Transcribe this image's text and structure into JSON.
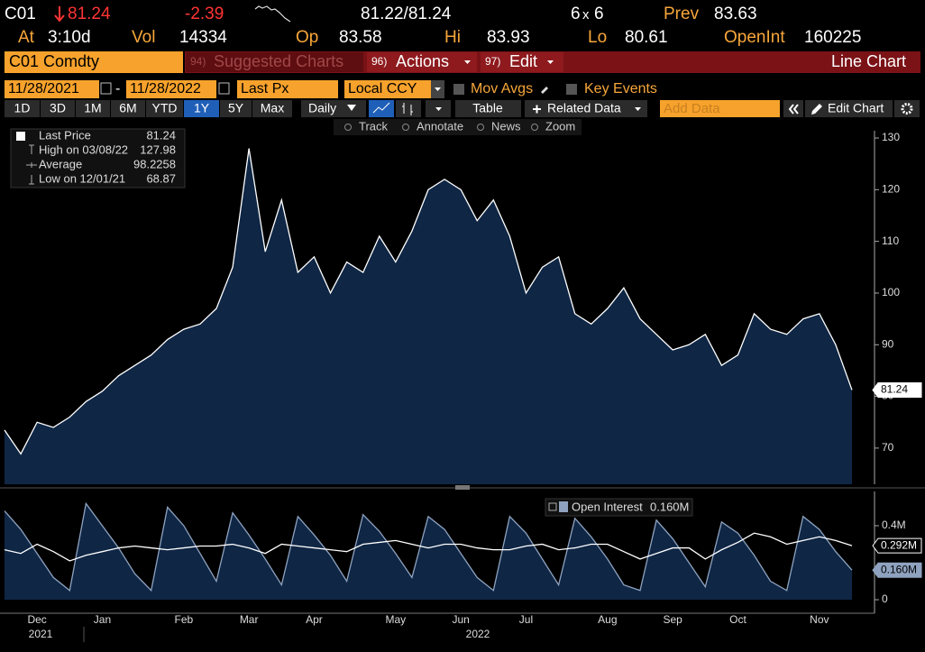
{
  "header": {
    "ticker": "C01",
    "last": "81.24",
    "change": "-2.39",
    "bid_ask": "81.22/81.24",
    "bid_size": "6",
    "size_sep": "x",
    "ask_size": "6",
    "prev_label": "Prev",
    "prev": "83.63",
    "at_label": "At",
    "at": "3:10d",
    "vol_label": "Vol",
    "vol": "14334",
    "op_label": "Op",
    "op": "83.58",
    "hi_label": "Hi",
    "hi": "83.93",
    "lo_label": "Lo",
    "lo": "80.61",
    "oi_label": "OpenInt",
    "oi": "160225"
  },
  "toolbar": {
    "security": "C01 Comdty",
    "suggested_num": "94)",
    "suggested": "Suggested Charts",
    "actions_num": "96)",
    "actions": "Actions",
    "edit_num": "97)",
    "edit": "Edit",
    "chart_type": "Line Chart",
    "start_date": "11/28/2021",
    "date_sep": "-",
    "end_date": "11/28/2022",
    "field": "Last Px",
    "currency": "Local CCY",
    "mov_avgs": "Mov Avgs",
    "key_events": "Key Events",
    "periods": [
      "1D",
      "3D",
      "1M",
      "6M",
      "YTD",
      "1Y",
      "5Y",
      "Max"
    ],
    "selected_period": 5,
    "frequency": "Daily",
    "table": "Table",
    "related_data": "Related Data",
    "add_data": "Add Data",
    "edit_chart": "Edit Chart",
    "tools": [
      "Track",
      "Annotate",
      "News",
      "Zoom"
    ]
  },
  "stats": {
    "last_label": "Last Price",
    "high_label": "High on 03/08/22",
    "average_label": "Average",
    "average": 98.2258,
    "low_label": "Low on 12/01/21"
  },
  "years": [
    "2021",
    "2022"
  ],
  "chart_data": [
    {
      "type": "area",
      "categories": [
        null,
        null,
        "Dec",
        null,
        null,
        null,
        "Jan",
        null,
        null,
        null,
        null,
        "Feb",
        null,
        null,
        null,
        "Mar",
        null,
        null,
        null,
        "Apr",
        null,
        null,
        null,
        null,
        "May",
        null,
        null,
        null,
        "Jun",
        null,
        null,
        null,
        "Jul",
        null,
        null,
        null,
        null,
        "Aug",
        null,
        null,
        null,
        "Sep",
        null,
        null,
        null,
        "Oct",
        null,
        null,
        null,
        null,
        "Nov",
        null,
        null
      ],
      "series": [
        {
          "name": "Last Price",
          "color": "#ffffff",
          "fill": "#0f2645",
          "values": [
            73.5,
            68.87,
            75,
            74,
            76,
            79,
            81,
            84,
            86,
            88,
            91,
            93,
            94,
            97,
            105,
            127.98,
            108,
            118,
            104,
            107,
            100,
            106,
            104,
            111,
            106,
            112,
            120,
            122,
            120,
            114,
            118,
            111,
            100,
            105,
            107,
            96,
            94,
            97,
            101,
            95,
            92,
            89,
            90,
            92,
            86,
            88,
            96,
            93,
            92,
            95,
            96,
            90,
            81.24
          ]
        }
      ],
      "ylim": [
        63,
        131.4
      ],
      "yticks": [
        70,
        80,
        90,
        100,
        110,
        120,
        130
      ]
    },
    {
      "type": "area",
      "series": [
        {
          "name": "Open Interest",
          "color": "#8fa3c0",
          "fill": "#0f2645",
          "values": [
            0.48,
            0.38,
            0.25,
            0.12,
            0.05,
            0.52,
            0.4,
            0.28,
            0.14,
            0.05,
            0.5,
            0.4,
            0.25,
            0.1,
            0.47,
            0.35,
            0.22,
            0.08,
            0.45,
            0.35,
            0.24,
            0.1,
            0.46,
            0.37,
            0.25,
            0.12,
            0.45,
            0.38,
            0.25,
            0.12,
            0.05,
            0.45,
            0.36,
            0.22,
            0.08,
            0.44,
            0.34,
            0.22,
            0.08,
            0.05,
            0.43,
            0.33,
            0.2,
            0.07,
            0.42,
            0.36,
            0.24,
            0.1,
            0.05,
            0.45,
            0.38,
            0.26,
            0.16
          ],
          "value_labels": [
            null,
            null,
            null,
            null,
            null,
            null,
            null,
            null,
            null,
            null,
            null,
            null,
            null,
            null,
            null,
            null,
            null,
            null,
            null,
            null,
            null,
            null,
            null,
            null,
            null,
            null,
            null,
            null,
            null,
            null,
            null,
            null,
            null,
            null,
            null,
            null,
            null,
            null,
            null,
            null,
            null,
            null,
            null,
            null,
            null,
            null,
            null,
            null,
            null,
            null,
            null,
            null,
            "0.160M"
          ]
        },
        {
          "type": "line",
          "color": "#ffffff",
          "values": [
            0.27,
            0.25,
            0.3,
            0.26,
            0.21,
            0.24,
            0.26,
            0.28,
            0.29,
            0.28,
            0.27,
            0.28,
            0.29,
            0.29,
            0.3,
            0.28,
            0.25,
            0.3,
            0.29,
            0.28,
            0.27,
            0.26,
            0.3,
            0.31,
            0.32,
            0.3,
            0.28,
            0.3,
            0.3,
            0.28,
            0.27,
            0.27,
            0.29,
            0.3,
            0.27,
            0.28,
            0.3,
            0.3,
            0.26,
            0.22,
            0.25,
            0.28,
            0.28,
            0.22,
            0.27,
            0.31,
            0.36,
            0.34,
            0.3,
            0.32,
            0.34,
            0.32,
            0.292
          ],
          "value_labels": [
            null,
            null,
            null,
            null,
            null,
            null,
            null,
            null,
            null,
            null,
            null,
            null,
            null,
            null,
            null,
            null,
            null,
            null,
            null,
            null,
            null,
            null,
            null,
            null,
            null,
            null,
            null,
            null,
            null,
            null,
            null,
            null,
            null,
            null,
            null,
            null,
            null,
            null,
            null,
            null,
            null,
            null,
            null,
            null,
            null,
            null,
            null,
            null,
            null,
            null,
            null,
            null,
            "0.292M"
          ]
        }
      ],
      "ylim": [
        -0.073,
        0.585
      ],
      "yticks": [
        {
          "value": 0.4,
          "label": "0.4M"
        },
        0
      ]
    }
  ]
}
